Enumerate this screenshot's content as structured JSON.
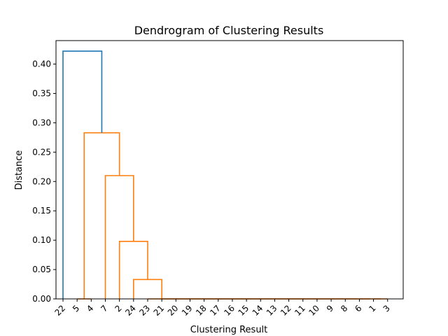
{
  "chart_data": {
    "type": "dendrogram",
    "title": "Dendrogram of Clustering Results",
    "xlabel": "Clustering Result",
    "ylabel": "Distance",
    "ylim": [
      0,
      0.44
    ],
    "yticks": [
      "0.00",
      "0.05",
      "0.10",
      "0.15",
      "0.20",
      "0.25",
      "0.30",
      "0.35",
      "0.40"
    ],
    "leaves": [
      "22",
      "5",
      "4",
      "7",
      "2",
      "24",
      "23",
      "21",
      "20",
      "19",
      "18",
      "17",
      "16",
      "15",
      "14",
      "13",
      "12",
      "11",
      "10",
      "9",
      "8",
      "6",
      "1",
      "3"
    ],
    "colors": {
      "above_threshold": "#1f77b4",
      "cluster": "#ff7f0e"
    },
    "merges": [
      {
        "left": "24",
        "right": "{23,21,20,19,18,17,16,15,14,13,12,11,10,9,8,6,1,3}",
        "distance": 0.033,
        "color": "cluster"
      },
      {
        "left": "2",
        "right": "{24,...}",
        "distance": 0.098,
        "color": "cluster"
      },
      {
        "left": "7",
        "right": "{2,...}",
        "distance": 0.21,
        "color": "cluster"
      },
      {
        "left": "5",
        "right": "4",
        "distance": 0.0,
        "color": "cluster"
      },
      {
        "left": "{5,4}",
        "right": "{7,...}",
        "distance": 0.283,
        "color": "cluster"
      },
      {
        "left": "22",
        "right": "{5,...}",
        "distance": 0.422,
        "color": "above_threshold"
      }
    ],
    "grid": false,
    "legend": "none"
  }
}
